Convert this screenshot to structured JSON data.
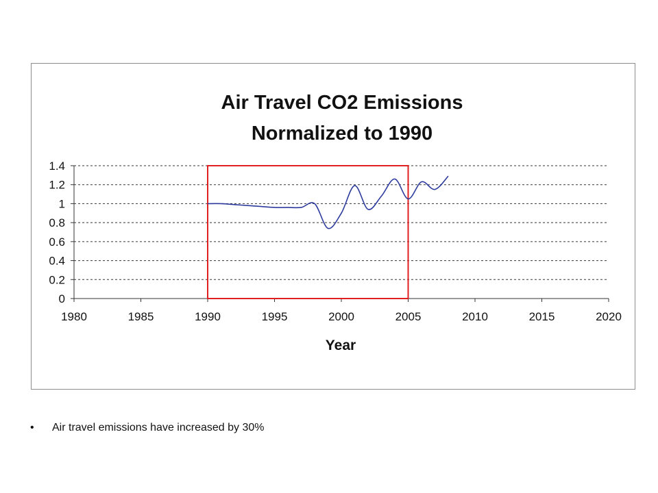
{
  "bullet": {
    "text": "Air travel emissions have increased by 30%"
  },
  "chart_data": {
    "type": "line",
    "title": [
      "Air Travel CO2 Emissions",
      "Normalized to 1990"
    ],
    "xlabel": "Year",
    "ylabel": "",
    "xlim": [
      1980,
      2020
    ],
    "ylim": [
      0,
      1.4
    ],
    "x_ticks": [
      "1980",
      "1985",
      "1990",
      "1995",
      "2000",
      "2005",
      "2010",
      "2015",
      "2020"
    ],
    "y_ticks": [
      "0",
      "0.2",
      "0.4",
      "0.6",
      "0.8",
      "1",
      "1.2",
      "1.4"
    ],
    "grid": "horizontal-dashed",
    "legend": "none",
    "series": [
      {
        "color": "#2b3a9c",
        "x": [
          1990,
          1991,
          1992,
          1993,
          1994,
          1995,
          1996,
          1997,
          1998,
          1999,
          2000,
          2001,
          2002,
          2003,
          2004,
          2005,
          2006,
          2007,
          2008
        ],
        "y": [
          1.0,
          1.0,
          0.99,
          0.98,
          0.97,
          0.96,
          0.96,
          0.96,
          1.0,
          0.74,
          0.9,
          1.19,
          0.94,
          1.08,
          1.26,
          1.05,
          1.23,
          1.15,
          1.29
        ]
      }
    ],
    "annotations": [
      {
        "type": "rectangle",
        "x_range": [
          1990,
          2005
        ],
        "y_range": [
          0,
          1.4
        ],
        "color": "#e02020"
      }
    ]
  }
}
